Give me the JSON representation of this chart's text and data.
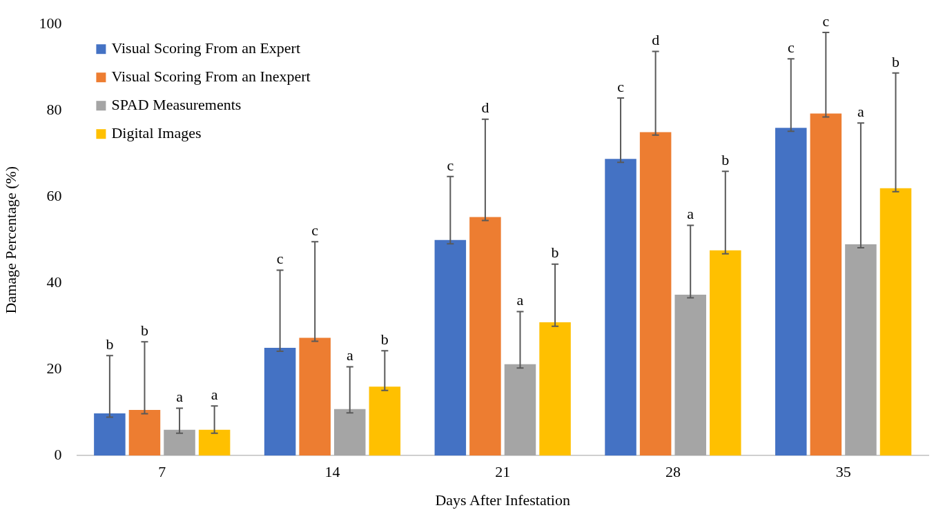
{
  "chart_data": {
    "type": "bar",
    "xlabel": "Days After Infestation",
    "ylabel": "Damage Percentage (%)",
    "categories": [
      "7",
      "14",
      "21",
      "28",
      "35"
    ],
    "ylim": [
      0,
      100
    ],
    "yticks": [
      0,
      20,
      40,
      60,
      80,
      100
    ],
    "grid": false,
    "legend": "top left",
    "annotations": [
      "b",
      "b",
      "a",
      "a",
      "c",
      "c",
      "a",
      "b",
      "c",
      "d",
      "a",
      "b",
      "c",
      "d",
      "a",
      "b",
      "c",
      "c",
      "a",
      "b"
    ],
    "series": [
      {
        "name": "Visual Scoring From an Expert",
        "color": "#4472c4",
        "values": [
          9.8,
          25.0,
          50.0,
          68.8,
          76.0
        ],
        "errors": [
          [
            8.9,
            23.2
          ],
          [
            24.2,
            43.0
          ],
          [
            49.1,
            64.7
          ],
          [
            68.0,
            82.9
          ],
          [
            75.2,
            92.0
          ]
        ]
      },
      {
        "name": "Visual Scoring From an Inexpert",
        "color": "#ed7d31",
        "values": [
          10.6,
          27.3,
          55.3,
          75.0,
          79.3
        ],
        "errors": [
          [
            9.7,
            26.4
          ],
          [
            26.5,
            49.6
          ],
          [
            54.5,
            78.0
          ],
          [
            74.3,
            93.7
          ],
          [
            78.5,
            98.1
          ]
        ]
      },
      {
        "name": "SPAD Measurements",
        "color": "#a5a5a5",
        "values": [
          6.0,
          10.8,
          21.2,
          37.3,
          49.0
        ],
        "errors": [
          [
            5.2,
            11.0
          ],
          [
            9.9,
            20.6
          ],
          [
            20.3,
            33.4
          ],
          [
            36.6,
            53.4
          ],
          [
            48.2,
            77.1
          ]
        ]
      },
      {
        "name": "Digital Images",
        "color": "#ffc000",
        "values": [
          6.0,
          16.0,
          30.9,
          47.6,
          62.0
        ],
        "errors": [
          [
            5.2,
            11.5
          ],
          [
            15.1,
            24.3
          ],
          [
            30.0,
            44.4
          ],
          [
            46.8,
            65.9
          ],
          [
            61.2,
            88.7
          ]
        ]
      }
    ]
  }
}
